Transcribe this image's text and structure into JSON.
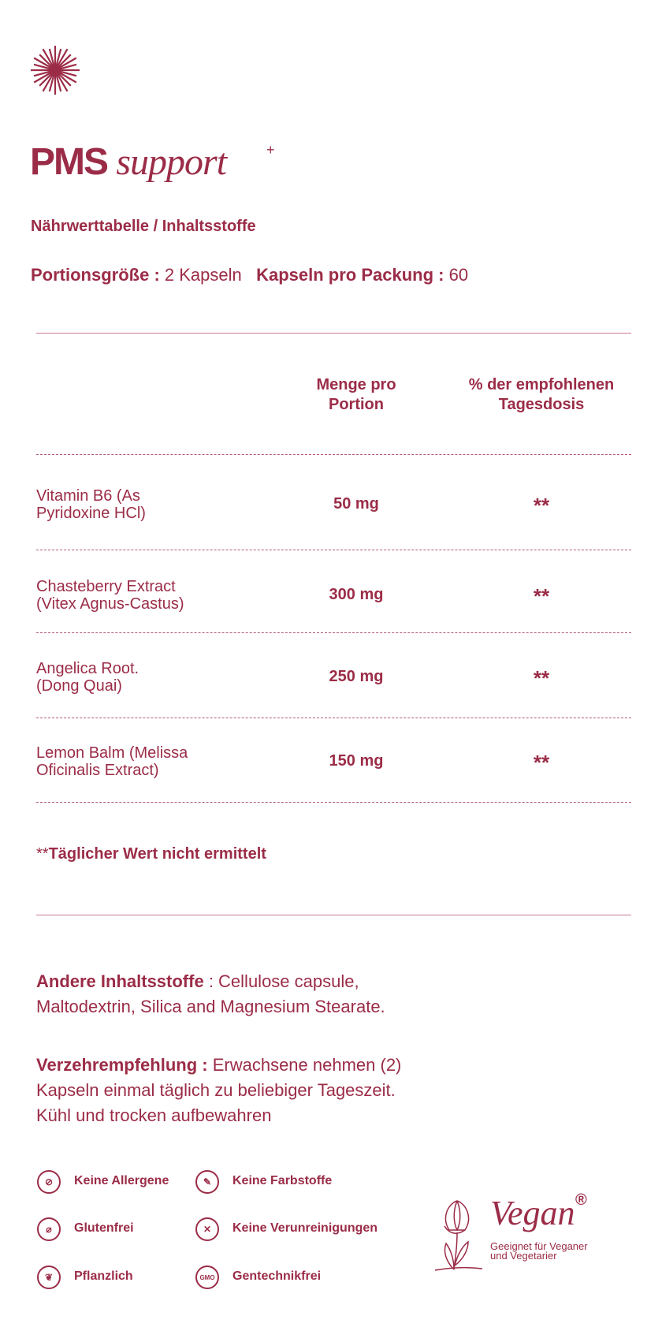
{
  "brand": {
    "logo_icon": "sunburst-icon",
    "title_main": "PMS",
    "title_script": "support",
    "title_sup": "+"
  },
  "subtitle": "Nährwerttabelle / Inhaltsstoffe",
  "portion": {
    "size_label": "Portionsgröße :",
    "size_value": "2 Kapseln",
    "pack_label": "Kapseln pro Packung :",
    "pack_value": "60"
  },
  "table": {
    "col_amount": "Menge pro Portion",
    "col_percent": "% der empfohlenen Tagesdosis",
    "rows": [
      {
        "name1": "Vitamin B6 (As",
        "name2": "Pyridoxine HCl)",
        "amount": "50 mg",
        "percent": "**"
      },
      {
        "name1": "Chasteberry Extract",
        "name2": "(Vitex Agnus-Castus)",
        "amount": "300 mg",
        "percent": "**"
      },
      {
        "name1": "Angelica Root.",
        "name2": "(Dong Quai)",
        "amount": "250 mg",
        "percent": "**"
      },
      {
        "name1": "Lemon Balm (Melissa",
        "name2": "Oficinalis Extract)",
        "amount": "150 mg",
        "percent": "**"
      }
    ]
  },
  "footnote": {
    "stars": "**",
    "text": "Täglicher Wert nicht ermittelt"
  },
  "other": {
    "label": "Andere Inhaltsstoffe",
    "sep": " : ",
    "text1": "Cellulose capsule,",
    "text2": "Maltodextrin, Silica and Magnesium Stearate."
  },
  "usage": {
    "label": "Verzehrempfehlung :",
    "text1": " Erwachsene nehmen (2)",
    "text2": "Kapseln einmal täglich zu beliebiger Tageszeit.",
    "text3": "Kühl und trocken aufbewahren"
  },
  "badges": [
    {
      "label": "Keine Allergene",
      "icon": "no-allergens-icon",
      "glyph": "⊘"
    },
    {
      "label": "Keine Farbstoffe",
      "icon": "no-dyes-icon",
      "glyph": "✎"
    },
    {
      "label": "Glutenfrei",
      "icon": "gluten-free-icon",
      "glyph": "⌀"
    },
    {
      "label": "Keine Verunreinigungen",
      "icon": "no-contaminants-icon",
      "glyph": "✕"
    },
    {
      "label": "Pflanzlich",
      "icon": "plant-icon",
      "glyph": "❦"
    },
    {
      "label": "Gentechnikfrei",
      "icon": "gmo-free-icon",
      "glyph": "GMO"
    }
  ],
  "vegan": {
    "title": "Vegan",
    "reg": "®",
    "line1": "Geeignet für Veganer",
    "line2": "und Vegetarier",
    "icon": "tulip-icon"
  },
  "accent": "#9b2c47"
}
